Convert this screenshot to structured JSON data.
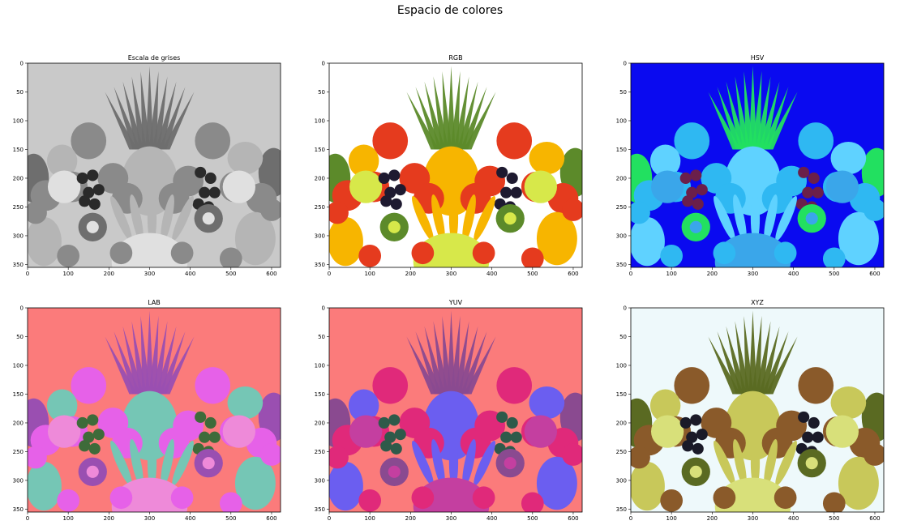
{
  "figure": {
    "suptitle": "Espacio de colores"
  },
  "chart_data": [
    {
      "type": "image",
      "title": "Escala de grises",
      "xlim": [
        0,
        622
      ],
      "ylim": [
        355,
        0
      ],
      "xticks": [
        0,
        100,
        200,
        300,
        400,
        500,
        600
      ],
      "yticks": [
        0,
        50,
        100,
        150,
        200,
        250,
        300,
        350
      ],
      "colors": {
        "bg": "#c9c9c9",
        "fruit_a": "#8a8a8a",
        "fruit_b": "#b5b5b5",
        "dark": "#2a2a2a",
        "leaf": "#6e6e6e",
        "light": "#e0e0e0"
      }
    },
    {
      "type": "image",
      "title": "RGB",
      "xlim": [
        0,
        622
      ],
      "ylim": [
        355,
        0
      ],
      "xticks": [
        0,
        100,
        200,
        300,
        400,
        500,
        600
      ],
      "yticks": [
        0,
        50,
        100,
        150,
        200,
        250,
        300,
        350
      ],
      "colors": {
        "bg": "#ffffff",
        "fruit_a": "#e53b1e",
        "fruit_b": "#f7b500",
        "dark": "#1e1a30",
        "leaf": "#5c8a2a",
        "light": "#d7e84a"
      }
    },
    {
      "type": "image",
      "title": "HSV",
      "xlim": [
        0,
        622
      ],
      "ylim": [
        355,
        0
      ],
      "xticks": [
        0,
        100,
        200,
        300,
        400,
        500,
        600
      ],
      "yticks": [
        0,
        50,
        100,
        150,
        200,
        250,
        300,
        350
      ],
      "colors": {
        "bg": "#0a0af0",
        "fruit_a": "#2fb8f2",
        "fruit_b": "#5fd2ff",
        "dark": "#6b1f4a",
        "leaf": "#22e060",
        "light": "#3aa6ea"
      }
    },
    {
      "type": "image",
      "title": "LAB",
      "xlim": [
        0,
        622
      ],
      "ylim": [
        355,
        0
      ],
      "xticks": [
        0,
        100,
        200,
        300,
        400,
        500,
        600
      ],
      "yticks": [
        0,
        50,
        100,
        150,
        200,
        250,
        300,
        350
      ],
      "colors": {
        "bg": "#fb7b7b",
        "fruit_a": "#e661e8",
        "fruit_b": "#75c6b5",
        "dark": "#3e6b3a",
        "leaf": "#9a4fb1",
        "light": "#ee8ad9"
      }
    },
    {
      "type": "image",
      "title": "YUV",
      "xlim": [
        0,
        622
      ],
      "ylim": [
        355,
        0
      ],
      "xticks": [
        0,
        100,
        200,
        300,
        400,
        500,
        600
      ],
      "yticks": [
        0,
        50,
        100,
        150,
        200,
        250,
        300,
        350
      ],
      "colors": {
        "bg": "#fb7b7b",
        "fruit_a": "#e0297a",
        "fruit_b": "#6b5ef0",
        "dark": "#2e5a4a",
        "leaf": "#8a4a90",
        "light": "#c43fa0"
      }
    },
    {
      "type": "image",
      "title": "XYZ",
      "xlim": [
        0,
        622
      ],
      "ylim": [
        355,
        0
      ],
      "xticks": [
        0,
        100,
        200,
        300,
        400,
        500,
        600
      ],
      "yticks": [
        0,
        50,
        100,
        150,
        200,
        250,
        300,
        350
      ],
      "colors": {
        "bg": "#eef9fb",
        "fruit_a": "#8a5a2a",
        "fruit_b": "#c8c85a",
        "dark": "#1a1a28",
        "leaf": "#5a6a22",
        "light": "#d8e07a"
      }
    }
  ]
}
